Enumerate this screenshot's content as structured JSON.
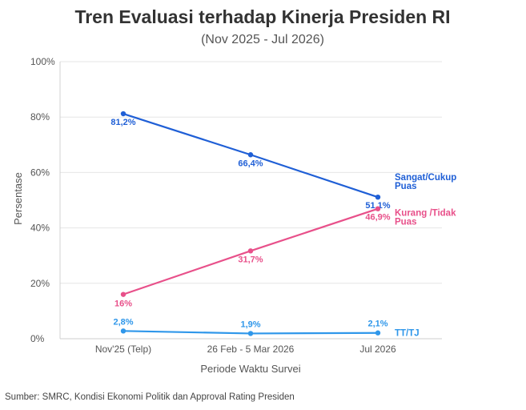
{
  "chart_data": {
    "type": "line",
    "title": "Tren Evaluasi terhadap Kinerja Presiden RI",
    "subtitle": "(Nov 2025 - Jul 2026)",
    "xlabel": "Periode Waktu Survei",
    "ylabel": "Persentase",
    "categories": [
      "Nov'25 (Telp)",
      "26 Feb - 5 Mar 2026",
      "Jul 2026"
    ],
    "ylim": [
      0,
      100
    ],
    "y_ticks": [
      "0%",
      "20%",
      "40%",
      "60%",
      "80%",
      "100%"
    ],
    "grid": true,
    "series": [
      {
        "name": "Sangat/Cukup Puas",
        "name_lines": [
          "Sangat/Cukup",
          "Puas"
        ],
        "values": [
          81.2,
          66.4,
          51.1
        ],
        "labels": [
          "81,2%",
          "66,4%",
          "51,1%"
        ],
        "color": "#1f5fd6"
      },
      {
        "name": "Kurang /Tidak Puas",
        "name_lines": [
          "Kurang /Tidak",
          "Puas"
        ],
        "values": [
          16,
          31.7,
          46.9
        ],
        "labels": [
          "16%",
          "31,7%",
          "46,9%"
        ],
        "color": "#e8508a"
      },
      {
        "name": "TT/TJ",
        "name_lines": [
          "TT/TJ"
        ],
        "values": [
          2.8,
          1.9,
          2.1
        ],
        "labels": [
          "2,8%",
          "1,9%",
          "2,1%"
        ],
        "color": "#2f97ea"
      }
    ]
  },
  "source": "Sumber: SMRC, Kondisi Ekonomi Politik dan Approval Rating Presiden"
}
